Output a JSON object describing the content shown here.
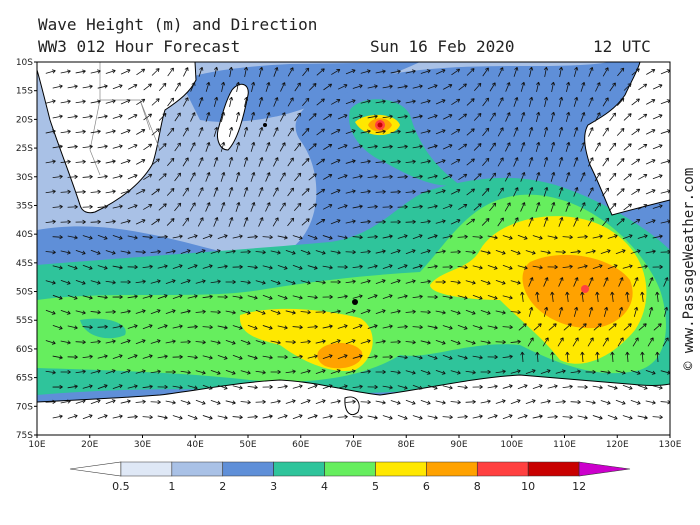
{
  "header": {
    "title": "Wave Height (m) and Direction",
    "model": "WW3 012 Hour Forecast",
    "date": "Sun 16 Feb 2020",
    "time": "12 UTC"
  },
  "lat_labels": [
    "10S",
    "15S",
    "20S",
    "25S",
    "30S",
    "35S",
    "40S",
    "45S",
    "50S",
    "55S",
    "60S",
    "65S",
    "70S",
    "75S"
  ],
  "lon_labels": [
    "10E",
    "20E",
    "30E",
    "40E",
    "50E",
    "60E",
    "70E",
    "80E",
    "90E",
    "100E",
    "110E",
    "120E",
    "130E"
  ],
  "colorbar": {
    "labels": [
      "0.5",
      "1",
      "2",
      "3",
      "4",
      "5",
      "6",
      "8",
      "10",
      "12"
    ],
    "colors": [
      "#ffffff",
      "#dfe8f6",
      "#a9c1e6",
      "#5f8fd8",
      "#2fc49b",
      "#66ee5e",
      "#ffe800",
      "#ffa200",
      "#ff4040",
      "#c80000",
      "#cc00cc"
    ]
  },
  "watermark": "© www.PassageWeather.com"
}
